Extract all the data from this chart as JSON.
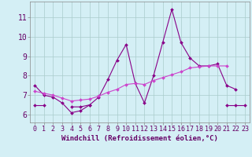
{
  "x": [
    0,
    1,
    2,
    3,
    4,
    5,
    6,
    7,
    8,
    9,
    10,
    11,
    12,
    13,
    14,
    15,
    16,
    17,
    18,
    19,
    20,
    21,
    22,
    23
  ],
  "line_jagged": [
    7.5,
    7.0,
    6.9,
    6.6,
    6.1,
    6.2,
    6.5,
    6.9,
    7.8,
    8.8,
    9.6,
    7.6,
    6.6,
    8.0,
    9.7,
    11.4,
    9.7,
    8.9,
    8.5,
    8.5,
    8.6,
    7.5,
    7.3,
    null
  ],
  "line_diagonal": [
    7.2,
    7.1,
    7.0,
    6.85,
    6.7,
    6.75,
    6.8,
    6.95,
    7.15,
    7.3,
    7.55,
    7.6,
    7.55,
    7.75,
    7.9,
    8.05,
    8.2,
    8.4,
    8.45,
    8.5,
    8.5,
    8.5,
    null,
    null
  ],
  "line_flat": [
    6.5,
    6.5,
    null,
    null,
    6.4,
    6.4,
    6.5,
    null,
    null,
    null,
    null,
    null,
    null,
    null,
    null,
    null,
    null,
    null,
    null,
    null,
    null,
    6.5,
    6.5,
    6.5
  ],
  "line_jagged_color": "#880088",
  "line_diagonal_color": "#cc44cc",
  "line_flat_color": "#880088",
  "bg_color": "#d4eff5",
  "grid_color": "#aacccc",
  "xlabel": "Windchill (Refroidissement éolien,°C)",
  "ylabel_ticks": [
    6,
    7,
    8,
    9,
    10,
    11
  ],
  "xticks": [
    0,
    1,
    2,
    3,
    4,
    5,
    6,
    7,
    8,
    9,
    10,
    11,
    12,
    13,
    14,
    15,
    16,
    17,
    18,
    19,
    20,
    21,
    22,
    23
  ],
  "xlim": [
    -0.5,
    23.5
  ],
  "ylim": [
    5.6,
    11.8
  ],
  "xlabel_fontsize": 6.5,
  "tick_fontsize": 6,
  "line_width": 0.8,
  "marker": "D",
  "marker_size": 2.0
}
